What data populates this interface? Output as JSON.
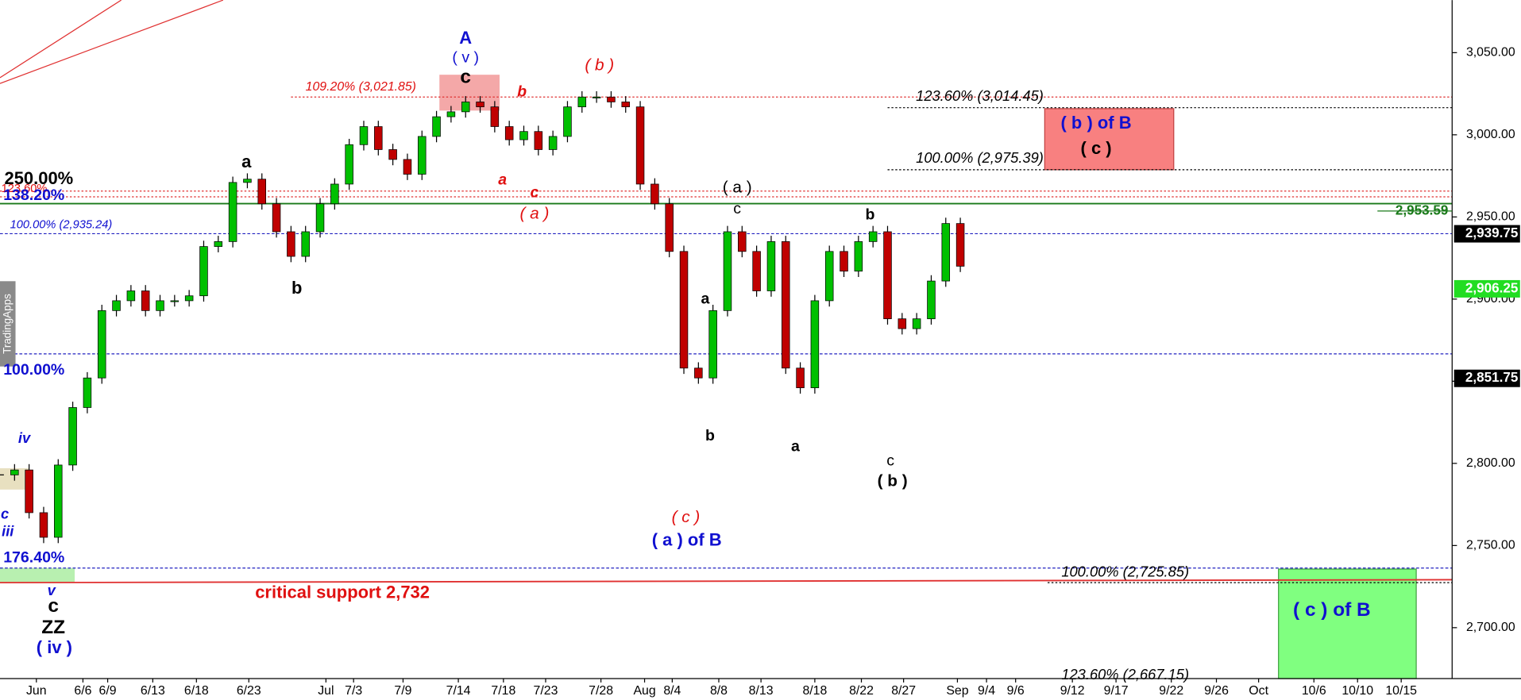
{
  "chart_data": {
    "type": "candlestick",
    "x": [
      0,
      1,
      2,
      3,
      4,
      5,
      6,
      7,
      8,
      9,
      10,
      11,
      12,
      13,
      14,
      15,
      16,
      17,
      18,
      19,
      20,
      21,
      22,
      23,
      24,
      25,
      26,
      27,
      28,
      29,
      30,
      31,
      32,
      33,
      34,
      35,
      36,
      37,
      38,
      39,
      40,
      41,
      42,
      43,
      44,
      45,
      46,
      47,
      48,
      49,
      50,
      51,
      52,
      53,
      54,
      55,
      56,
      57,
      58,
      59,
      60,
      61,
      62,
      63,
      64,
      65,
      66
    ],
    "close": [
      2793,
      2796,
      2770,
      2755,
      2799,
      2834,
      2852,
      2893,
      2899,
      2905,
      2893,
      2899,
      2899,
      2902,
      2932,
      2935,
      2971,
      2973,
      2958,
      2941,
      2926,
      2941,
      2958,
      2970,
      2994,
      3005,
      2991,
      2985,
      2976,
      2999,
      3011,
      3014,
      3020,
      3017,
      3005,
      2997,
      3002,
      2991,
      2999,
      3017,
      3023,
      3023,
      3020,
      3017,
      2970,
      2958,
      2929,
      2858,
      2852,
      2893,
      2941,
      2929,
      2905,
      2935,
      2858,
      2846,
      2899,
      2929,
      2917,
      2935,
      2941,
      2888,
      2882,
      2888,
      2911,
      2946,
      2920
    ],
    "up_color": "#00c000",
    "down_color": "#c00000",
    "xlim": [
      0,
      99.8
    ],
    "xticks": [
      {
        "value": 2.5,
        "label": "Jun"
      },
      {
        "value": 5.7,
        "label": "6/6"
      },
      {
        "value": 7.4,
        "label": "6/9"
      },
      {
        "value": 10.5,
        "label": "6/13"
      },
      {
        "value": 13.5,
        "label": "6/18"
      },
      {
        "value": 17.1,
        "label": "6/23"
      },
      {
        "value": 22.4,
        "label": "Jul"
      },
      {
        "value": 24.3,
        "label": "7/3"
      },
      {
        "value": 27.7,
        "label": "7/9"
      },
      {
        "value": 31.5,
        "label": "7/14"
      },
      {
        "value": 34.6,
        "label": "7/18"
      },
      {
        "value": 37.5,
        "label": "7/23"
      },
      {
        "value": 41.3,
        "label": "7/28"
      },
      {
        "value": 44.3,
        "label": "Aug"
      },
      {
        "value": 46.2,
        "label": "8/4"
      },
      {
        "value": 49.4,
        "label": "8/8"
      },
      {
        "value": 52.3,
        "label": "8/13"
      },
      {
        "value": 56,
        "label": "8/18"
      },
      {
        "value": 59.2,
        "label": "8/22"
      },
      {
        "value": 62.1,
        "label": "8/27"
      },
      {
        "value": 65.8,
        "label": "Sep"
      },
      {
        "value": 67.8,
        "label": "9/4"
      },
      {
        "value": 69.8,
        "label": "9/6"
      },
      {
        "value": 73.7,
        "label": "9/12"
      },
      {
        "value": 76.7,
        "label": "9/17"
      },
      {
        "value": 80.5,
        "label": "9/22"
      },
      {
        "value": 83.6,
        "label": "9/26"
      },
      {
        "value": 86.5,
        "label": "Oct"
      },
      {
        "value": 90.3,
        "label": "10/6"
      },
      {
        "value": 93.3,
        "label": "10/10"
      },
      {
        "value": 96.3,
        "label": "10/15"
      }
    ],
    "ylim": [
      2669,
      3082
    ],
    "yticks": [
      {
        "value": 2700,
        "label": "2,700.00"
      },
      {
        "value": 2750,
        "label": "2,750.00"
      },
      {
        "value": 2800,
        "label": "2,800.00"
      },
      {
        "value": 2850,
        "label": "2,850.00"
      },
      {
        "value": 2900,
        "label": "2,900.00"
      },
      {
        "value": 2950,
        "label": "2,950.00"
      },
      {
        "value": 3000,
        "label": "3,000.00"
      },
      {
        "value": 3050,
        "label": "3,050.00"
      }
    ],
    "price_labels": [
      {
        "value": 2953.59,
        "label": "2,953.59"
      },
      {
        "value": 2939.75,
        "label": "2,939.75"
      },
      {
        "value": 2906.25,
        "label": "2,906.25"
      },
      {
        "value": 2851.75,
        "label": "2,851.75"
      }
    ],
    "annotations": [
      "A",
      "( v )",
      "c",
      "109.20% (3,021.85)",
      "b",
      "( b )",
      "a",
      "250.00%",
      "123.60%",
      "138.20%",
      "100.00% (2,935.24)",
      "b",
      "a",
      "c",
      "( a )",
      "( a )",
      "c",
      "123.60% (3,014.45)",
      "( b ) of B",
      "( c )",
      "100.00% (2,975.39)",
      "b",
      "a",
      "b",
      "a",
      "c",
      "( b )",
      "( c )",
      "( a ) of B",
      "100.00%",
      "iv",
      "c",
      "iii",
      "176.40%",
      "v",
      "c",
      "ZZ",
      "( iv )",
      "critical support 2,732",
      "100.00% (2,725.85)",
      "( c ) of B",
      "123.60% (2,667.15)",
      "TradingApps"
    ]
  }
}
